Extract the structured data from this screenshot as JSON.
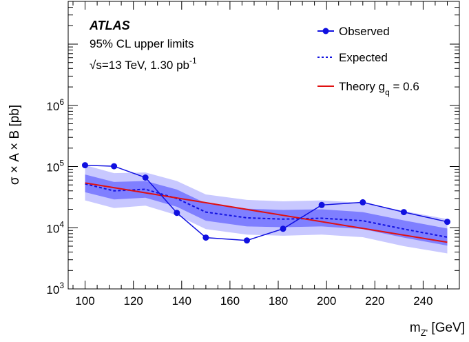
{
  "chart_data": {
    "type": "line",
    "y_scale": "log",
    "xlim": [
      93,
      255
    ],
    "ylim": [
      1000,
      50000000
    ],
    "x_ticks": [
      100,
      120,
      140,
      160,
      180,
      200,
      220,
      240
    ],
    "y_ticks": [
      {
        "value": 1000,
        "base": "10",
        "exp": "3"
      },
      {
        "value": 10000,
        "base": "10",
        "exp": "4"
      },
      {
        "value": 100000,
        "base": "10",
        "exp": "5"
      },
      {
        "value": 1000000,
        "base": "10",
        "exp": "6"
      }
    ],
    "ylabel": "σ × A × B [pb]",
    "xlabel": {
      "main": "m",
      "sub": "Z'",
      "unit": " [GeV]"
    },
    "annotations": {
      "experiment": "ATLAS",
      "line1": "95% CL upper limits",
      "sqrt": "√s=13 TeV, 1.30 pb",
      "sup": "-1"
    },
    "legend": {
      "placement": "top-right",
      "observed": "Observed",
      "expected": "Expected",
      "theory_main": "Theory g",
      "theory_sub": "q",
      "theory_rest": " = 0.6"
    },
    "colors": {
      "observed": "#1010e0",
      "expected": "#1010e0",
      "theory": "#e01010",
      "band1": "#7f7fff",
      "band2": "#c8c8ff"
    },
    "series": [
      {
        "name": "Observed",
        "x": [
          100,
          112,
          125,
          138,
          150,
          167,
          182,
          198,
          215,
          232,
          250
        ],
        "y": [
          105000,
          101000,
          66000,
          17500,
          6900,
          6200,
          9600,
          23500,
          26000,
          18000,
          12500
        ]
      },
      {
        "name": "Expected",
        "x": [
          100,
          112,
          125,
          138,
          150,
          167,
          182,
          198,
          215,
          232,
          250
        ],
        "y": [
          52000,
          40000,
          42500,
          30000,
          18000,
          14500,
          13800,
          14300,
          13000,
          9500,
          7000
        ]
      },
      {
        "name": "Theory g_q = 0.6",
        "x": [
          100,
          250
        ],
        "y": [
          54000,
          5800
        ]
      }
    ],
    "bands": {
      "x": [
        100,
        112,
        125,
        138,
        150,
        167,
        182,
        198,
        215,
        232,
        250
      ],
      "one_sigma_low": [
        38000,
        29000,
        31000,
        22000,
        13000,
        10500,
        10200,
        10500,
        9500,
        6900,
        5100
      ],
      "one_sigma_high": [
        74000,
        56000,
        58000,
        42000,
        25000,
        20500,
        19500,
        20000,
        18000,
        13200,
        9700
      ],
      "two_sigma_low": [
        28000,
        21000,
        23000,
        16000,
        9500,
        7700,
        7400,
        7700,
        7000,
        5000,
        3800
      ],
      "two_sigma_high": [
        105000,
        78000,
        80000,
        58000,
        35000,
        28500,
        27000,
        28000,
        25500,
        18700,
        13800
      ]
    }
  }
}
